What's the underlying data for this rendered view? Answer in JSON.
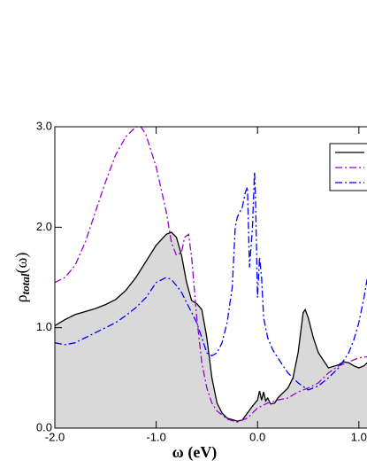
{
  "chart_data": {
    "type": "line",
    "xlabel": "ω (eV)",
    "ylabel": {
      "main": "ρ",
      "sub": "total",
      "tail": "(ω)"
    },
    "xlim": [
      -2.0,
      1.08
    ],
    "ylim": [
      0.0,
      3.0
    ],
    "xticks": [
      {
        "value": -2.0,
        "label": "-2.0"
      },
      {
        "value": -1.0,
        "label": "-1.0"
      },
      {
        "value": 0.0,
        "label": "0.0"
      },
      {
        "value": 1.0,
        "label": "1.0"
      }
    ],
    "yticks": [
      {
        "value": 0.0,
        "label": "0.0"
      },
      {
        "value": 1.0,
        "label": "1.0"
      },
      {
        "value": 2.0,
        "label": "2.0"
      },
      {
        "value": 3.0,
        "label": "3.0"
      }
    ],
    "series": [
      {
        "color": "#000000",
        "fill": "#d9d9d9",
        "dash": "none",
        "x": [
          -2.0,
          -1.9,
          -1.8,
          -1.7,
          -1.6,
          -1.5,
          -1.4,
          -1.3,
          -1.2,
          -1.1,
          -1.0,
          -0.9,
          -0.85,
          -0.8,
          -0.75,
          -0.7,
          -0.65,
          -0.6,
          -0.55,
          -0.5,
          -0.45,
          -0.4,
          -0.35,
          -0.3,
          -0.2,
          -0.15,
          -0.1,
          -0.05,
          0.0,
          0.02,
          0.04,
          0.06,
          0.08,
          0.1,
          0.13,
          0.17,
          0.2,
          0.25,
          0.3,
          0.35,
          0.4,
          0.45,
          0.47,
          0.5,
          0.55,
          0.6,
          0.7,
          0.8,
          0.85,
          0.9,
          0.95,
          1.0,
          1.05,
          1.08
        ],
        "values": [
          1.02,
          1.08,
          1.13,
          1.16,
          1.19,
          1.23,
          1.28,
          1.37,
          1.5,
          1.66,
          1.82,
          1.93,
          1.95,
          1.9,
          1.72,
          1.45,
          1.27,
          1.24,
          1.18,
          0.9,
          0.5,
          0.25,
          0.15,
          0.1,
          0.07,
          0.08,
          0.15,
          0.22,
          0.28,
          0.37,
          0.28,
          0.36,
          0.27,
          0.3,
          0.24,
          0.25,
          0.3,
          0.35,
          0.4,
          0.5,
          0.75,
          1.15,
          1.18,
          1.1,
          0.9,
          0.75,
          0.6,
          0.63,
          0.66,
          0.65,
          0.62,
          0.6,
          0.62,
          0.65
        ]
      },
      {
        "color": "#9900cc",
        "dash": "8 3 2 3",
        "x": [
          -2.0,
          -1.9,
          -1.8,
          -1.7,
          -1.6,
          -1.5,
          -1.4,
          -1.3,
          -1.2,
          -1.15,
          -1.1,
          -1.0,
          -0.9,
          -0.85,
          -0.8,
          -0.75,
          -0.72,
          -0.68,
          -0.65,
          -0.6,
          -0.55,
          -0.5,
          -0.45,
          -0.4,
          -0.3,
          -0.2,
          -0.1,
          0.0,
          0.1,
          0.2,
          0.3,
          0.4,
          0.5,
          0.6,
          0.7,
          0.8,
          0.9,
          1.0,
          1.08
        ],
        "values": [
          1.45,
          1.5,
          1.62,
          1.85,
          2.15,
          2.45,
          2.72,
          2.9,
          3.0,
          3.0,
          2.92,
          2.6,
          2.15,
          1.85,
          1.72,
          1.75,
          1.9,
          1.93,
          1.7,
          1.1,
          0.65,
          0.4,
          0.25,
          0.17,
          0.09,
          0.06,
          0.1,
          0.2,
          0.25,
          0.28,
          0.3,
          0.36,
          0.4,
          0.45,
          0.55,
          0.62,
          0.66,
          0.7,
          0.71
        ]
      },
      {
        "color": "#0000ff",
        "dash": "8 3 2 3",
        "x": [
          -2.0,
          -1.9,
          -1.8,
          -1.7,
          -1.6,
          -1.5,
          -1.4,
          -1.3,
          -1.2,
          -1.1,
          -1.0,
          -0.9,
          -0.85,
          -0.8,
          -0.75,
          -0.7,
          -0.6,
          -0.55,
          -0.5,
          -0.45,
          -0.4,
          -0.35,
          -0.3,
          -0.25,
          -0.22,
          -0.2,
          -0.15,
          -0.12,
          -0.1,
          -0.08,
          -0.05,
          -0.03,
          -0.02,
          0.0,
          0.02,
          0.04,
          0.06,
          0.1,
          0.15,
          0.2,
          0.3,
          0.4,
          0.5,
          0.6,
          0.7,
          0.8,
          0.9,
          0.95,
          1.0,
          1.05,
          1.08
        ],
        "values": [
          0.85,
          0.83,
          0.85,
          0.9,
          0.95,
          1.0,
          1.05,
          1.12,
          1.2,
          1.3,
          1.45,
          1.5,
          1.48,
          1.42,
          1.35,
          1.25,
          1.05,
          0.9,
          0.75,
          0.72,
          0.75,
          0.85,
          1.05,
          1.4,
          2.0,
          2.1,
          2.2,
          2.35,
          2.4,
          1.6,
          2.0,
          2.55,
          2.3,
          1.3,
          1.7,
          1.5,
          1.1,
          0.9,
          0.78,
          0.7,
          0.55,
          0.45,
          0.38,
          0.42,
          0.5,
          0.6,
          0.75,
          0.88,
          1.05,
          1.3,
          1.48
        ]
      }
    ]
  }
}
